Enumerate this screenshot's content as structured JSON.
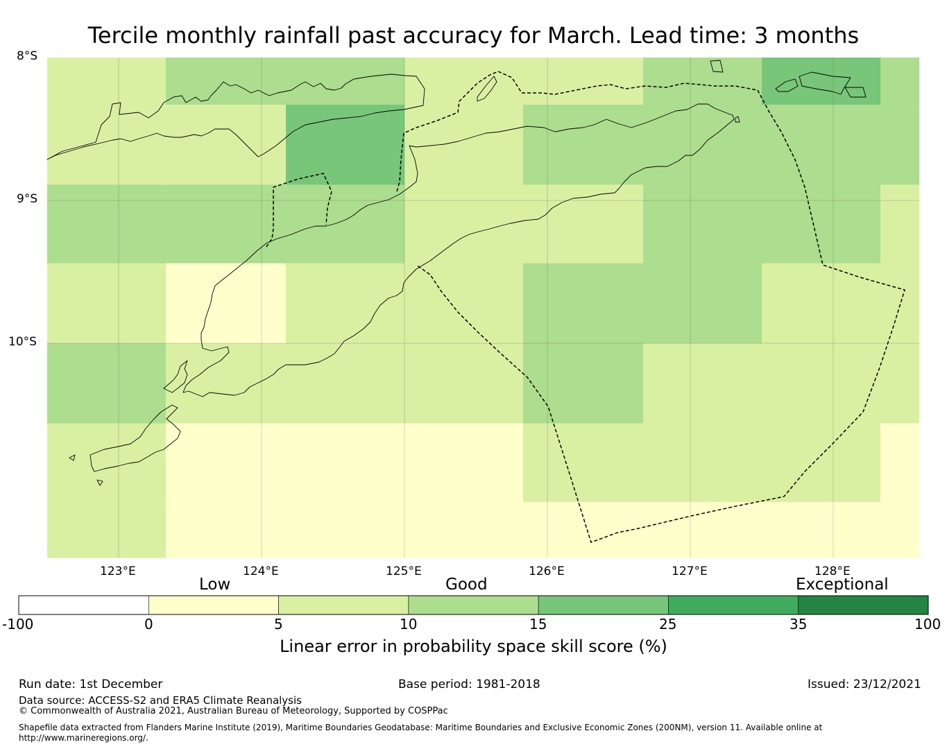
{
  "title": "Tercile monthly rainfall past accuracy for March. Lead time: 3 months",
  "map": {
    "lat_labels": [
      "8°S",
      "9°S",
      "10°S"
    ],
    "lon_labels": [
      "123°E",
      "124°E",
      "125°E",
      "126°E",
      "127°E",
      "128°E"
    ],
    "grid_columns_deg_e": [
      [
        122.5,
        123.33
      ],
      [
        123.33,
        124.17
      ],
      [
        124.17,
        125.0
      ],
      [
        125.0,
        125.83
      ],
      [
        125.83,
        126.67
      ],
      [
        126.67,
        127.5
      ],
      [
        127.5,
        128.33
      ],
      [
        128.33,
        128.6
      ]
    ],
    "grid_rows_deg_s": [
      [
        8.0,
        8.33
      ],
      [
        8.33,
        8.89
      ],
      [
        8.89,
        9.44
      ],
      [
        9.44,
        10.0
      ],
      [
        10.0,
        10.56
      ],
      [
        10.56,
        11.11
      ],
      [
        11.11,
        11.5
      ]
    ],
    "skill_cells": [
      [
        5,
        10,
        10,
        5,
        5,
        10,
        15,
        10
      ],
      [
        5,
        5,
        15,
        5,
        10,
        10,
        10,
        10
      ],
      [
        10,
        10,
        10,
        5,
        5,
        10,
        10,
        5
      ],
      [
        5,
        0,
        5,
        5,
        10,
        10,
        5,
        5
      ],
      [
        10,
        5,
        5,
        5,
        10,
        5,
        5,
        5
      ],
      [
        5,
        0,
        0,
        0,
        5,
        5,
        5,
        0
      ],
      [
        5,
        0,
        0,
        0,
        0,
        0,
        0,
        0
      ]
    ]
  },
  "colorbar": {
    "category_labels": [
      "Low",
      "Good",
      "Exceptional"
    ],
    "bins": [
      {
        "from": -100,
        "to": 0,
        "color": "#ffffff"
      },
      {
        "from": 0,
        "to": 5,
        "color": "#ffffcc"
      },
      {
        "from": 5,
        "to": 10,
        "color": "#d9f0a3"
      },
      {
        "from": 10,
        "to": 15,
        "color": "#addd8e"
      },
      {
        "from": 15,
        "to": 25,
        "color": "#78c679"
      },
      {
        "from": 25,
        "to": 35,
        "color": "#41ab5d"
      },
      {
        "from": 35,
        "to": 100,
        "color": "#238443"
      }
    ],
    "ticks": [
      "-100",
      "0",
      "5",
      "10",
      "15",
      "25",
      "35",
      "100"
    ],
    "xlabel": "Linear error in probability space skill score (%)"
  },
  "footer": {
    "run_date": "Run date: 1st December",
    "base_period": "Base period: 1981-2018",
    "issued": "Issued: 23/12/2021",
    "data_source": "Data source: ACCESS-S2 and ERA5 Climate Reanalysis",
    "copyright": "© Commonwealth of Australia 2021, Australian Bureau of Meteorology, Supported by COSPPac",
    "shapefile": "Shapefile data extracted from Flanders Marine Institute (2019), Maritime Boundaries Geodatabase: Maritime Boundaries and Exclusive Economic Zones (200NM), version 11. Available online at http://www.marineregions.org/."
  }
}
